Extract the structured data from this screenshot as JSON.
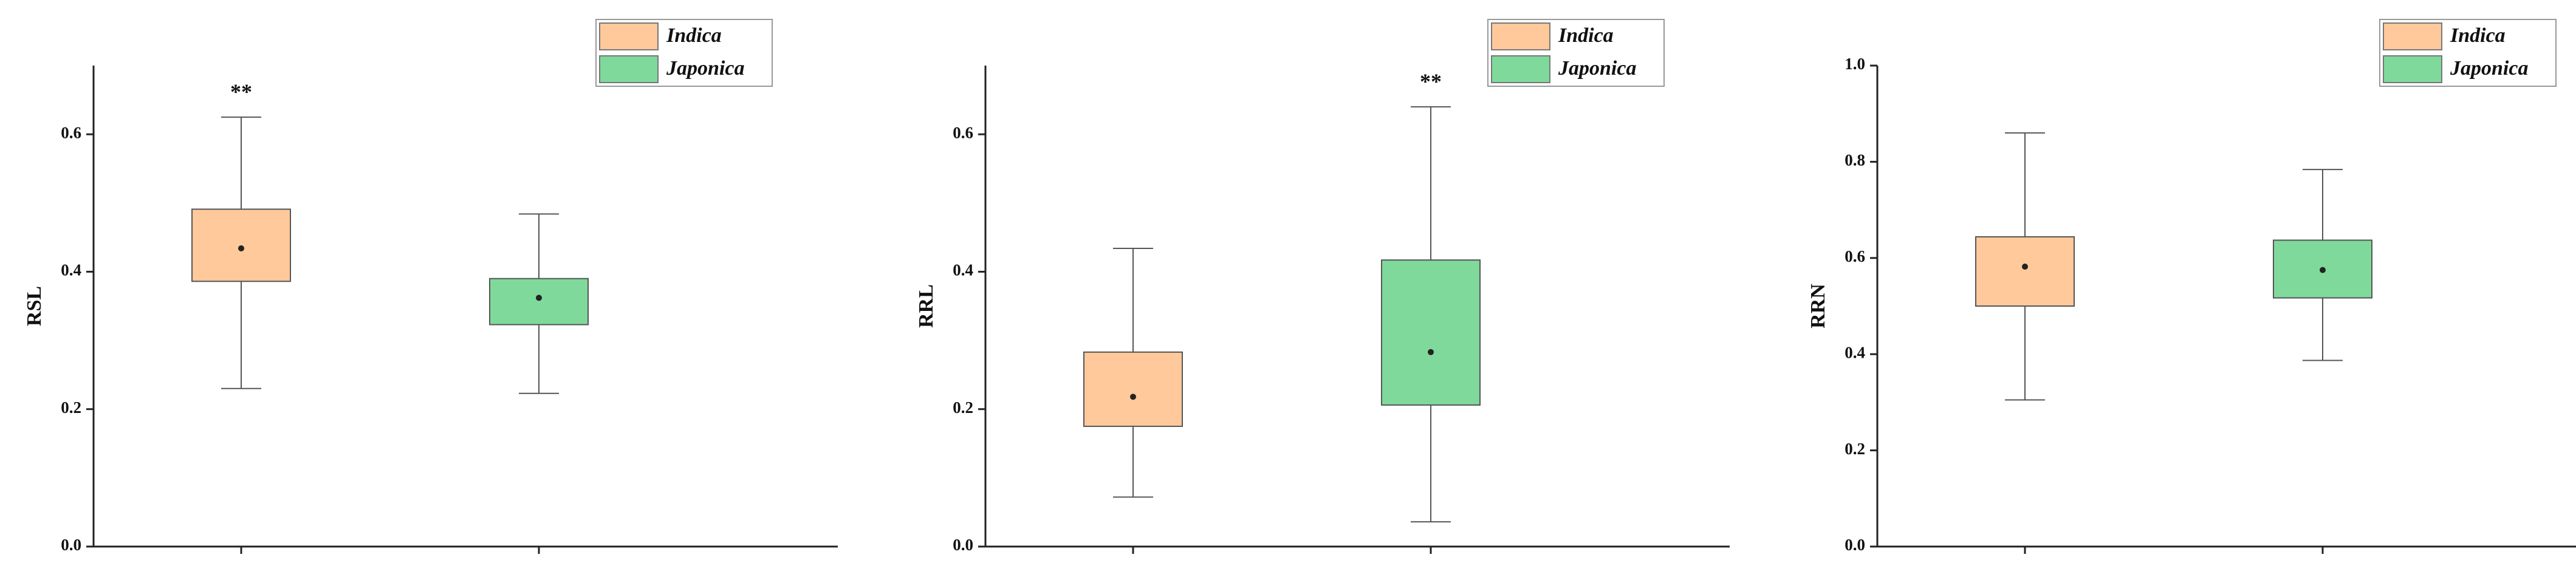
{
  "chart_data": [
    {
      "type": "box",
      "ylabel": "RSL",
      "ylim": [
        0,
        0.7
      ],
      "yticks": [
        {
          "value": 0,
          "label": "0.0"
        },
        0.2,
        0.4,
        0.6
      ],
      "series": [
        {
          "name": "Indica",
          "color": "#ffc99b",
          "whisker_low": 0.23,
          "q1": 0.386,
          "mean": 0.434,
          "q3": 0.491,
          "whisker_high": 0.625,
          "significance": "**"
        },
        {
          "name": "Japonica",
          "color": "#7fd99b",
          "whisker_low": 0.223,
          "q1": 0.323,
          "mean": 0.362,
          "q3": 0.39,
          "whisker_high": 0.484
        }
      ]
    },
    {
      "type": "box",
      "ylabel": "RRL",
      "ylim": [
        0,
        0.7
      ],
      "yticks": [
        {
          "value": 0,
          "label": "0.0"
        },
        0.2,
        0.4,
        0.6
      ],
      "series": [
        {
          "name": "Indica",
          "color": "#ffc99b",
          "whisker_low": 0.072,
          "q1": 0.175,
          "mean": 0.218,
          "q3": 0.283,
          "whisker_high": 0.434
        },
        {
          "name": "Japonica",
          "color": "#7fd99b",
          "whisker_low": 0.036,
          "q1": 0.206,
          "mean": 0.283,
          "q3": 0.417,
          "whisker_high": 0.64,
          "significance": "**"
        }
      ]
    },
    {
      "type": "box",
      "ylabel": "RRN",
      "ylim": [
        0,
        1
      ],
      "yticks": [
        {
          "value": 0,
          "label": "0.0"
        },
        0.2,
        {
          "value": 0.4,
          "label": "0.4"
        },
        0.6,
        0.8,
        {
          "value": 1,
          "label": "1.0"
        }
      ],
      "series": [
        {
          "name": "Indica",
          "color": "#ffc99b",
          "whisker_low": 0.305,
          "q1": 0.5,
          "mean": 0.582,
          "q3": 0.644,
          "whisker_high": 0.86
        },
        {
          "name": "Japonica",
          "color": "#7fd99b",
          "whisker_low": 0.387,
          "q1": 0.517,
          "mean": 0.575,
          "q3": 0.637,
          "whisker_high": 0.784
        }
      ]
    }
  ]
}
